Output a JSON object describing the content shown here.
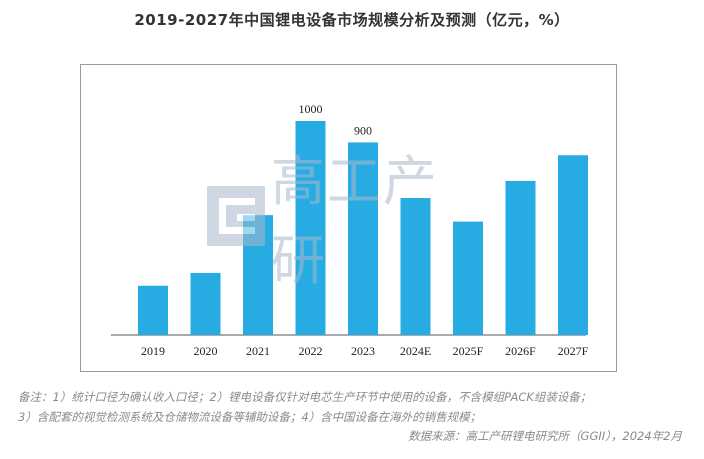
{
  "title": "2019-2027年中国锂电设备市场规模分析及预测（亿元，%）",
  "watermark": "高工产研",
  "notes": [
    "备注：1）统计口径为确认收入口径；2）锂电设备仅针对电芯生产环节中使用的设备，不含模组PACK组装设备；",
    "3）含配套的视觉检测系统及仓储物流设备等辅助设备；4）含中国设备在海外的销售规模；"
  ],
  "source": "数据来源：高工产研锂电研究所（GGII），2024年2月",
  "colors": {
    "bar": "#26ace2",
    "axis": "#555555",
    "frame": "#9a9a9a"
  },
  "chart_data": {
    "type": "bar",
    "title": "2019-2027年中国锂电设备市场规模分析及预测（亿元，%）",
    "categories": [
      "2019",
      "2020",
      "2021",
      "2022",
      "2023",
      "2024E",
      "2025F",
      "2026F",
      "2027F"
    ],
    "values": [
      230,
      290,
      560,
      1000,
      900,
      640,
      530,
      720,
      840
    ],
    "data_labels": [
      "",
      "",
      "",
      "1000",
      "900",
      "",
      "",
      "",
      ""
    ],
    "xlabel": "",
    "ylabel": "",
    "ylim": [
      0,
      1000
    ],
    "grid": false,
    "legend": false
  }
}
